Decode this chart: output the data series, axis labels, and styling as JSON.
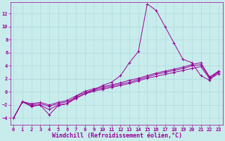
{
  "background_color": "#c8ecec",
  "grid_color": "#afd8d8",
  "line_color": "#990099",
  "marker": "+",
  "xlabel": "Windchill (Refroidissement éolien,°C)",
  "xlabel_fontsize": 6,
  "yticks": [
    -4,
    -2,
    0,
    2,
    4,
    6,
    8,
    10,
    12
  ],
  "xticks": [
    0,
    1,
    2,
    3,
    4,
    5,
    6,
    7,
    8,
    9,
    10,
    11,
    12,
    13,
    14,
    15,
    16,
    17,
    18,
    19,
    20,
    21,
    22,
    23
  ],
  "xlim": [
    -0.3,
    23.5
  ],
  "ylim": [
    -5.0,
    13.8
  ],
  "series1_x": [
    0,
    1,
    2,
    3,
    4,
    5,
    6,
    7,
    8,
    9,
    10,
    11,
    12,
    13,
    14,
    15,
    16,
    17,
    18,
    19,
    20,
    21,
    22,
    23
  ],
  "series1_y": [
    -4.0,
    -1.5,
    -2.2,
    -2.0,
    -2.7,
    -2.0,
    -1.8,
    -1.0,
    -0.3,
    0.3,
    1.0,
    1.5,
    2.5,
    4.5,
    6.2,
    13.5,
    12.5,
    10.0,
    7.5,
    5.0,
    4.5,
    2.5,
    1.8,
    3.2
  ],
  "series2_x": [
    0,
    1,
    2,
    3,
    4,
    5,
    6,
    7,
    8,
    9,
    10,
    11,
    12,
    13,
    14,
    15,
    16,
    17,
    18,
    19,
    20,
    21,
    22,
    23
  ],
  "series2_y": [
    -4.0,
    -1.5,
    -2.2,
    -2.0,
    -3.5,
    -2.1,
    -1.8,
    -0.7,
    -0.1,
    0.3,
    0.6,
    0.9,
    1.2,
    1.5,
    1.9,
    2.3,
    2.7,
    3.0,
    3.3,
    3.6,
    4.0,
    4.2,
    2.2,
    3.0
  ],
  "series3_x": [
    0,
    1,
    2,
    3,
    4,
    5,
    6,
    7,
    8,
    9,
    10,
    11,
    12,
    13,
    14,
    15,
    16,
    17,
    18,
    19,
    20,
    21,
    22,
    23
  ],
  "series3_y": [
    -4.0,
    -1.5,
    -2.0,
    -1.8,
    -2.2,
    -1.8,
    -1.5,
    -0.9,
    -0.3,
    0.1,
    0.4,
    0.7,
    1.0,
    1.3,
    1.7,
    2.1,
    2.4,
    2.7,
    3.0,
    3.3,
    3.6,
    3.9,
    2.0,
    2.8
  ],
  "series4_x": [
    0,
    1,
    2,
    3,
    4,
    5,
    6,
    7,
    8,
    9,
    10,
    11,
    12,
    13,
    14,
    15,
    16,
    17,
    18,
    19,
    20,
    21,
    22,
    23
  ],
  "series4_y": [
    -4.0,
    -1.5,
    -1.8,
    -1.6,
    -2.0,
    -1.6,
    -1.3,
    -0.6,
    0.1,
    0.5,
    0.8,
    1.1,
    1.4,
    1.8,
    2.1,
    2.5,
    2.9,
    3.2,
    3.5,
    3.8,
    4.2,
    4.5,
    2.3,
    3.2
  ]
}
